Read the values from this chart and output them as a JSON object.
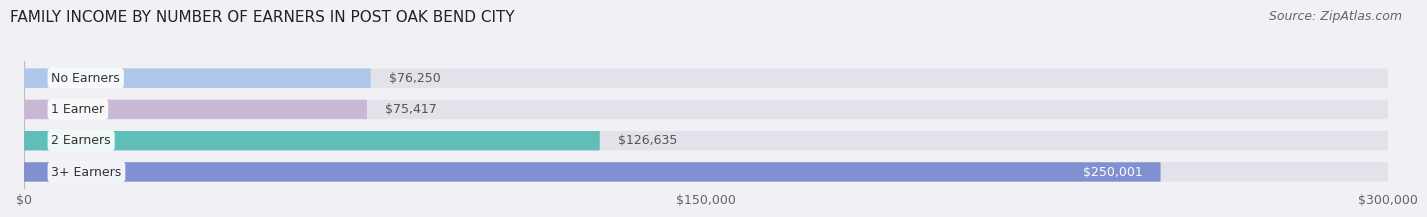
{
  "title": "FAMILY INCOME BY NUMBER OF EARNERS IN POST OAK BEND CITY",
  "source": "Source: ZipAtlas.com",
  "categories": [
    "No Earners",
    "1 Earner",
    "2 Earners",
    "3+ Earners"
  ],
  "values": [
    76250,
    75417,
    126635,
    250001
  ],
  "bar_colors": [
    "#aec6e8",
    "#c9b8d4",
    "#5fbfb8",
    "#8090d0"
  ],
  "bar_labels": [
    "$76,250",
    "$75,417",
    "$126,635",
    "$250,001"
  ],
  "label_colors_inside": [
    "#ffffff",
    "#ffffff",
    "#ffffff",
    "#ffffff"
  ],
  "xlim": [
    0,
    300000
  ],
  "xtick_labels": [
    "$0",
    "$150,000",
    "$300,000"
  ],
  "background_color": "#f0f0f5",
  "bar_background_color": "#e2e2ea",
  "title_fontsize": 11,
  "source_fontsize": 9,
  "label_fontsize": 9,
  "category_fontsize": 9,
  "tick_fontsize": 9
}
